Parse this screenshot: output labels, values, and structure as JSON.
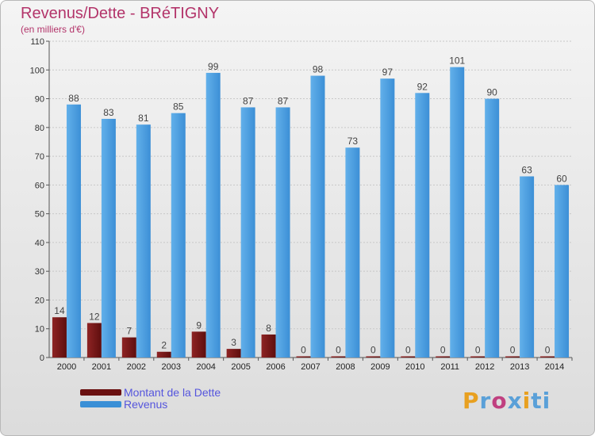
{
  "header": {
    "title": "Revenus/Dette - BRéTIGNY",
    "subtitle": "(en milliers d'€)"
  },
  "chart_data": {
    "type": "bar",
    "categories": [
      "2000",
      "2001",
      "2002",
      "2003",
      "2004",
      "2005",
      "2006",
      "2007",
      "2008",
      "2009",
      "2010",
      "2011",
      "2012",
      "2013",
      "2014"
    ],
    "series": [
      {
        "name": "Montant de la Dette",
        "color": "#7a1616",
        "values": [
          14,
          12,
          7,
          2,
          9,
          3,
          8,
          0,
          0,
          0,
          0,
          0,
          0,
          0,
          0
        ]
      },
      {
        "name": "Revenus",
        "color": "#3a8fd6",
        "values": [
          88,
          83,
          81,
          85,
          99,
          87,
          87,
          98,
          73,
          97,
          92,
          101,
          90,
          63,
          60
        ]
      }
    ],
    "ylim": [
      0,
      110
    ],
    "yticks": [
      0,
      10,
      20,
      30,
      40,
      50,
      60,
      70,
      80,
      90,
      100,
      110
    ],
    "grid": true,
    "legend": "bottom-left",
    "title": "Revenus/Dette - BRéTIGNY",
    "subtitle": "(en milliers d'€)"
  },
  "legend": {
    "items": [
      {
        "label": "Montant de la Dette",
        "color": "#6a1010"
      },
      {
        "label": "Revenus",
        "color": "#3a8fd6"
      }
    ]
  },
  "logo": {
    "letters": [
      "P",
      "r",
      "o",
      "x",
      "i",
      "ti"
    ]
  }
}
